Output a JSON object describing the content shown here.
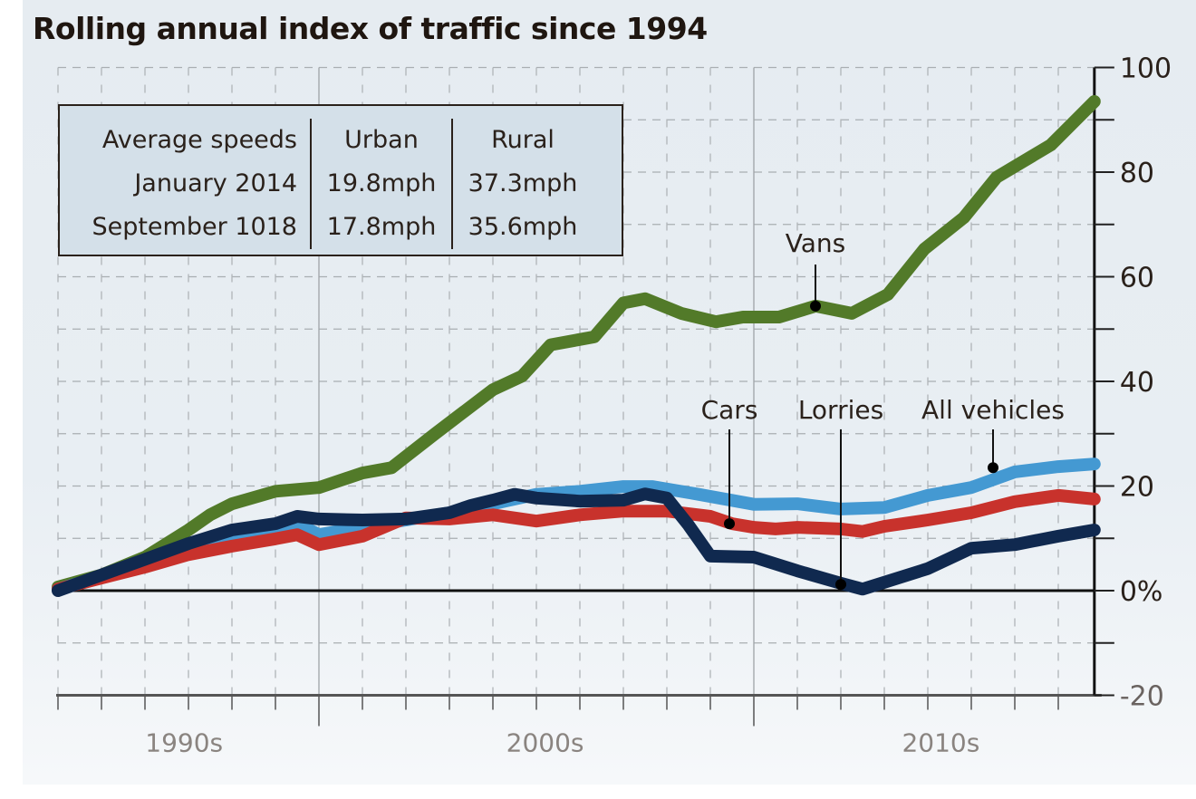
{
  "title": "Rolling annual index of traffic since 1994",
  "info_table": {
    "header": [
      "Average speeds",
      "Urban",
      "Rural"
    ],
    "rows": [
      [
        "January 2014",
        "19.8mph",
        "37.3mph"
      ],
      [
        "September 1018",
        "17.8mph",
        "35.6mph"
      ]
    ]
  },
  "chart_data": {
    "type": "line",
    "title": "Rolling annual index of traffic since 1994",
    "xlabel": "",
    "ylabel": "",
    "x_unit": "years since start of 1994",
    "xlim": [
      0,
      23.83
    ],
    "ylim": [
      -20,
      100
    ],
    "y_ticks": [
      -20,
      -10,
      0,
      10,
      20,
      30,
      40,
      50,
      60,
      70,
      80,
      90,
      100
    ],
    "y_tick_labels": [
      {
        "value": 100,
        "label": "100"
      },
      {
        "value": 80,
        "label": "80"
      },
      {
        "value": 60,
        "label": "60"
      },
      {
        "value": 40,
        "label": "40"
      },
      {
        "value": 20,
        "label": "20"
      },
      {
        "value": 0,
        "label": "0%"
      },
      {
        "value": -20,
        "label": "-20"
      }
    ],
    "x_decade_labels": [
      {
        "label": "1990s",
        "center": 2.9
      },
      {
        "label": "2000s",
        "center": 11.2
      },
      {
        "label": "2010s",
        "center": 20.3
      }
    ],
    "x_decade_boundaries": [
      6,
      16
    ],
    "grid": true,
    "colors": {
      "Vans": "#527a29",
      "Cars": "#c8322c",
      "Lorries": "#10294f",
      "All vehicles": "#4499d2"
    },
    "series": [
      {
        "name": "Vans",
        "x": [
          0,
          1,
          2,
          3,
          3.5,
          4,
          5,
          6,
          7,
          7.67,
          8.67,
          10,
          10.67,
          11.33,
          12.33,
          13,
          13.5,
          14.33,
          15.13,
          15.75,
          16.58,
          17.42,
          18.25,
          19.08,
          19.92,
          20.83,
          21.58,
          22.83,
          23.83
        ],
        "values": [
          0.7,
          3,
          6.4,
          11.6,
          14.5,
          16.6,
          19,
          19.7,
          22.5,
          23.5,
          30,
          38.4,
          41,
          47,
          48.5,
          55,
          55.8,
          53,
          51.4,
          52.3,
          52.3,
          54.4,
          53,
          56.6,
          65.3,
          71.3,
          79,
          85.2,
          93.5
        ]
      },
      {
        "name": "Cars",
        "x": [
          0,
          1,
          2,
          3,
          4,
          5,
          5.5,
          6,
          7,
          8,
          9,
          10,
          11,
          12,
          13,
          14,
          15,
          15.5,
          16,
          16.5,
          17,
          18,
          18.5,
          19,
          20,
          21,
          22,
          23,
          23.83
        ],
        "values": [
          0.3,
          2.4,
          4.5,
          6.9,
          8.5,
          9.9,
          10.7,
          8.8,
          10.4,
          13.9,
          13.7,
          14.5,
          13.3,
          14.5,
          15.2,
          15.2,
          14.2,
          12.8,
          12.1,
          11.8,
          12.1,
          11.8,
          11.3,
          12.3,
          13.5,
          14.9,
          17,
          18.2,
          17.5
        ]
      },
      {
        "name": "Lorries",
        "x": [
          0,
          1,
          2,
          3,
          4,
          5,
          5.5,
          6,
          7,
          8,
          9,
          9.5,
          10,
          10.5,
          11,
          12,
          13,
          13.5,
          14,
          14.5,
          15,
          16,
          17,
          18,
          18.5,
          19,
          20,
          21,
          22,
          23,
          23.83
        ],
        "values": [
          0,
          3,
          6,
          9,
          11.6,
          12.8,
          14.2,
          13.7,
          13.5,
          13.7,
          14.9,
          16.3,
          17.3,
          18.4,
          17.7,
          17.1,
          17.3,
          18.5,
          17.7,
          12.5,
          6.6,
          6.4,
          3.8,
          1.4,
          0.3,
          1.6,
          4.2,
          8.1,
          8.8,
          10.4,
          11.6
        ]
      },
      {
        "name": "All vehicles",
        "x": [
          0,
          1,
          2,
          3,
          4,
          5,
          5.5,
          6,
          7,
          8,
          9,
          10,
          11,
          12,
          13,
          13.67,
          14.67,
          16,
          17,
          18,
          19,
          20,
          21,
          22,
          23,
          23.83
        ],
        "values": [
          0.3,
          2.6,
          5.2,
          8.5,
          10.4,
          12.1,
          12.8,
          10.7,
          12.1,
          13.5,
          14.9,
          16.6,
          18.4,
          19,
          19.9,
          19.9,
          18.5,
          16.5,
          16.6,
          15.6,
          15.9,
          18.2,
          19.7,
          22.7,
          23.7,
          24.2
        ]
      }
    ],
    "annotations": [
      {
        "label": "Vans",
        "series": "Vans",
        "x": 17.42,
        "y": 54.4
      },
      {
        "label": "Cars",
        "series": "Cars",
        "x": 15.44,
        "y": 12.8
      },
      {
        "label": "Lorries",
        "series": "Lorries",
        "x": 18.0,
        "y": 1.2
      },
      {
        "label": "All vehicles",
        "series": "All vehicles",
        "x": 21.5,
        "y": 23.5
      }
    ]
  }
}
